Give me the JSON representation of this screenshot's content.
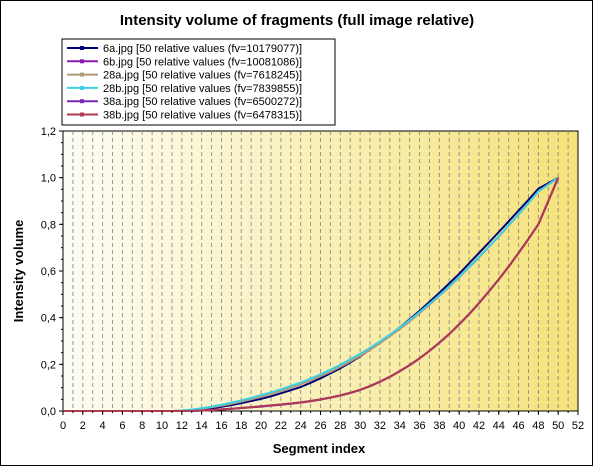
{
  "chart_data": {
    "type": "line",
    "title": "Intensity volume of fragments (full image relative)",
    "xlabel": "Segment index",
    "ylabel": "Intensity volume",
    "xlim": [
      0,
      52
    ],
    "ylim": [
      0,
      1.2
    ],
    "x_ticks": [
      "0",
      "2",
      "4",
      "6",
      "8",
      "10",
      "12",
      "14",
      "16",
      "18",
      "20",
      "22",
      "24",
      "26",
      "28",
      "30",
      "32",
      "34",
      "36",
      "38",
      "40",
      "42",
      "44",
      "46",
      "48",
      "50",
      "52"
    ],
    "y_ticks": [
      "0,0",
      "0,2",
      "0,4",
      "0,6",
      "0,8",
      "1,0",
      "1,2"
    ],
    "grid": "vertical-dashed",
    "legend_position": "top-left",
    "background_gradient": [
      "#fdfdf5",
      "#f5e27a"
    ],
    "x": [
      0,
      1,
      2,
      3,
      4,
      5,
      6,
      7,
      8,
      9,
      10,
      11,
      12,
      13,
      14,
      15,
      16,
      17,
      18,
      19,
      20,
      21,
      22,
      23,
      24,
      25,
      26,
      27,
      28,
      29,
      30,
      31,
      32,
      33,
      34,
      35,
      36,
      37,
      38,
      39,
      40,
      41,
      42,
      43,
      44,
      45,
      46,
      47,
      48,
      49,
      50
    ],
    "series": [
      {
        "name": "6a.jpg [50 relative values (fv=10179077)]",
        "color": "#00007a",
        "values": [
          0,
          0,
          0,
          0,
          0,
          0,
          0,
          0,
          0,
          0,
          0,
          0,
          0,
          0.002,
          0.006,
          0.011,
          0.018,
          0.025,
          0.034,
          0.043,
          0.052,
          0.063,
          0.076,
          0.089,
          0.103,
          0.121,
          0.14,
          0.161,
          0.183,
          0.208,
          0.234,
          0.263,
          0.293,
          0.325,
          0.358,
          0.393,
          0.429,
          0.467,
          0.506,
          0.547,
          0.588,
          0.633,
          0.677,
          0.722,
          0.767,
          0.813,
          0.859,
          0.905,
          0.953,
          0.976,
          1.0
        ]
      },
      {
        "name": "6b.jpg [50 relative values (fv=10081086)]",
        "color": "#8a1ab0",
        "values": [
          0,
          0,
          0,
          0,
          0,
          0,
          0,
          0,
          0,
          0,
          0,
          0,
          0,
          0,
          0.002,
          0.004,
          0.007,
          0.01,
          0.013,
          0.016,
          0.019,
          0.023,
          0.027,
          0.031,
          0.036,
          0.042,
          0.049,
          0.057,
          0.066,
          0.077,
          0.09,
          0.106,
          0.125,
          0.146,
          0.17,
          0.196,
          0.225,
          0.257,
          0.292,
          0.33,
          0.371,
          0.415,
          0.462,
          0.512,
          0.564,
          0.619,
          0.677,
          0.737,
          0.8,
          0.899,
          1.0
        ]
      },
      {
        "name": "28a.jpg [50 relative values (fv=7618245)]",
        "color": "#b09a7a",
        "values": [
          0,
          0,
          0,
          0,
          0,
          0,
          0,
          0,
          0,
          0,
          0,
          0,
          0.002,
          0.005,
          0.01,
          0.016,
          0.023,
          0.031,
          0.04,
          0.05,
          0.061,
          0.073,
          0.086,
          0.1,
          0.115,
          0.131,
          0.149,
          0.168,
          0.189,
          0.212,
          0.236,
          0.262,
          0.29,
          0.32,
          0.351,
          0.384,
          0.419,
          0.455,
          0.493,
          0.532,
          0.573,
          0.615,
          0.658,
          0.703,
          0.748,
          0.795,
          0.843,
          0.892,
          0.942,
          0.971,
          1.0
        ]
      },
      {
        "name": "28b.jpg [50 relative values (fv=7839855)]",
        "color": "#3ed0e0",
        "values": [
          0,
          0,
          0,
          0,
          0,
          0,
          0,
          0,
          0,
          0,
          0,
          0,
          0.002,
          0.006,
          0.012,
          0.019,
          0.027,
          0.036,
          0.046,
          0.056,
          0.068,
          0.08,
          0.093,
          0.107,
          0.122,
          0.139,
          0.157,
          0.177,
          0.198,
          0.221,
          0.245,
          0.271,
          0.298,
          0.327,
          0.358,
          0.39,
          0.424,
          0.459,
          0.496,
          0.535,
          0.575,
          0.617,
          0.66,
          0.704,
          0.749,
          0.796,
          0.843,
          0.892,
          0.941,
          0.97,
          1.0
        ]
      },
      {
        "name": "38a.jpg [50 relative values (fv=6500272)]",
        "color": "#7a2ab8",
        "values": [
          0,
          0,
          0,
          0,
          0,
          0,
          0,
          0,
          0,
          0,
          0,
          0,
          0,
          0,
          0.002,
          0.004,
          0.007,
          0.01,
          0.013,
          0.016,
          0.02,
          0.024,
          0.028,
          0.032,
          0.037,
          0.043,
          0.05,
          0.058,
          0.067,
          0.078,
          0.091,
          0.107,
          0.126,
          0.147,
          0.171,
          0.197,
          0.226,
          0.258,
          0.293,
          0.331,
          0.372,
          0.416,
          0.463,
          0.513,
          0.565,
          0.62,
          0.678,
          0.738,
          0.801,
          0.9,
          1.0
        ]
      },
      {
        "name": "38b.jpg [50 relative values (fv=6478315)]",
        "color": "#b03a50",
        "values": [
          0,
          0,
          0,
          0,
          0,
          0,
          0,
          0,
          0,
          0,
          0,
          0,
          0,
          0,
          0.002,
          0.004,
          0.007,
          0.01,
          0.013,
          0.016,
          0.02,
          0.024,
          0.028,
          0.032,
          0.037,
          0.043,
          0.05,
          0.058,
          0.067,
          0.078,
          0.091,
          0.107,
          0.125,
          0.146,
          0.17,
          0.196,
          0.225,
          0.257,
          0.292,
          0.33,
          0.371,
          0.415,
          0.462,
          0.512,
          0.564,
          0.619,
          0.677,
          0.737,
          0.8,
          0.899,
          1.0
        ]
      }
    ]
  }
}
